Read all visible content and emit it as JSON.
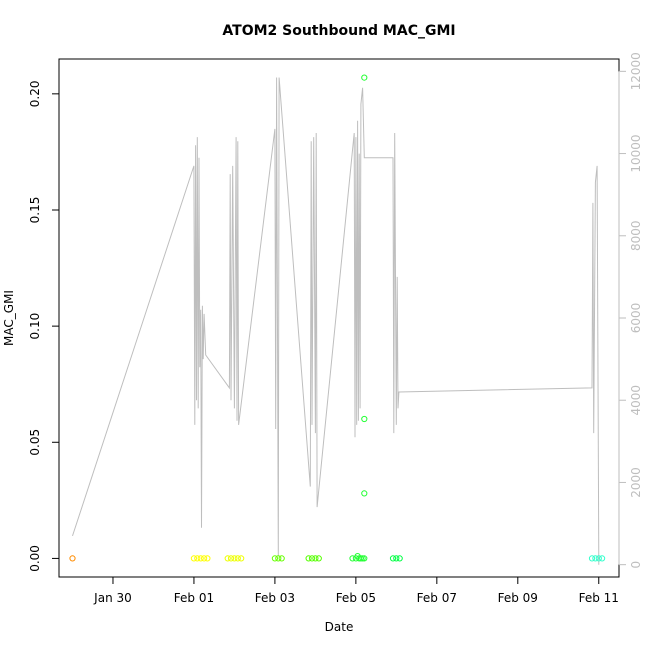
{
  "chart_data": {
    "type": "scatter",
    "title": "ATOM2 Southbound MAC_GMI",
    "xlabel": "Date",
    "ylabel": "MAC_GMI",
    "x_axis": {
      "type": "date",
      "range": [
        "2016-01-28T16:00",
        "2016-02-11T12:00"
      ],
      "ticks": [
        {
          "value": "2016-01-30",
          "label": "Jan 30"
        },
        {
          "value": "2016-02-01",
          "label": "Feb 01"
        },
        {
          "value": "2016-02-03",
          "label": "Feb 03"
        },
        {
          "value": "2016-02-05",
          "label": "Feb 05"
        },
        {
          "value": "2016-02-07",
          "label": "Feb 07"
        },
        {
          "value": "2016-02-09",
          "label": "Feb 09"
        },
        {
          "value": "2016-02-11",
          "label": "Feb 11"
        }
      ]
    },
    "y_axis": {
      "range": [
        -0.008,
        0.215
      ],
      "ticks": [
        {
          "value": 0.0,
          "label": "0.00"
        },
        {
          "value": 0.05,
          "label": "0.05"
        },
        {
          "value": 0.1,
          "label": "0.10"
        },
        {
          "value": 0.15,
          "label": "0.15"
        },
        {
          "value": 0.2,
          "label": "0.20"
        }
      ]
    },
    "y2_axis": {
      "range": [
        -300,
        12300
      ],
      "color": "#bebebe",
      "ticks": [
        {
          "value": 0,
          "label": "0"
        },
        {
          "value": 2000,
          "label": "2000"
        },
        {
          "value": 4000,
          "label": "4000"
        },
        {
          "value": 6000,
          "label": "6000"
        },
        {
          "value": 8000,
          "label": "8000"
        },
        {
          "value": 10000,
          "label": "10000"
        },
        {
          "value": 12000,
          "label": "12000"
        }
      ]
    },
    "grid": false,
    "series": [
      {
        "kind": "points",
        "axis": "left",
        "points": [
          {
            "x": "2016-01-29T00:00",
            "y": 0.0,
            "color": "#ff8c00"
          },
          {
            "x": "2016-02-01T00:00",
            "y": 0.0,
            "color": "#ffff00"
          },
          {
            "x": "2016-02-01T02:00",
            "y": 0.0,
            "color": "#ffff00"
          },
          {
            "x": "2016-02-01T04:00",
            "y": 0.0,
            "color": "#ffff00"
          },
          {
            "x": "2016-02-01T06:00",
            "y": 0.0,
            "color": "#ffff00"
          },
          {
            "x": "2016-02-01T08:00",
            "y": 0.0,
            "color": "#ffff00"
          },
          {
            "x": "2016-02-01T20:00",
            "y": 0.0,
            "color": "#eeff00"
          },
          {
            "x": "2016-02-01T22:00",
            "y": 0.0,
            "color": "#eeff00"
          },
          {
            "x": "2016-02-02T00:00",
            "y": 0.0,
            "color": "#eeff00"
          },
          {
            "x": "2016-02-02T02:00",
            "y": 0.0,
            "color": "#eeff00"
          },
          {
            "x": "2016-02-02T04:00",
            "y": 0.0,
            "color": "#eeff00"
          },
          {
            "x": "2016-02-03T00:00",
            "y": 0.0,
            "color": "#66ff00"
          },
          {
            "x": "2016-02-03T02:00",
            "y": 0.0,
            "color": "#66ff00"
          },
          {
            "x": "2016-02-03T04:00",
            "y": 0.0,
            "color": "#66ff00"
          },
          {
            "x": "2016-02-03T20:00",
            "y": 0.0,
            "color": "#55ff00"
          },
          {
            "x": "2016-02-03T22:00",
            "y": 0.0,
            "color": "#55ff00"
          },
          {
            "x": "2016-02-04T00:00",
            "y": 0.0,
            "color": "#55ff00"
          },
          {
            "x": "2016-02-04T02:00",
            "y": 0.0,
            "color": "#55ff00"
          },
          {
            "x": "2016-02-04T22:00",
            "y": 0.0,
            "color": "#22ff33"
          },
          {
            "x": "2016-02-05T00:00",
            "y": 0.0,
            "color": "#22ff33"
          },
          {
            "x": "2016-02-05T02:00",
            "y": 0.0,
            "color": "#22ff33"
          },
          {
            "x": "2016-02-05T03:00",
            "y": 0.0,
            "color": "#22ff33"
          },
          {
            "x": "2016-02-05T04:00",
            "y": 0.0,
            "color": "#22ff33"
          },
          {
            "x": "2016-02-05T05:00",
            "y": 0.0,
            "color": "#22ff33"
          },
          {
            "x": "2016-02-05T01:00",
            "y": 0.001,
            "color": "#22ff33"
          },
          {
            "x": "2016-02-05T05:00",
            "y": 0.207,
            "color": "#22ff33"
          },
          {
            "x": "2016-02-05T05:00",
            "y": 0.06,
            "color": "#22ff33"
          },
          {
            "x": "2016-02-05T05:00",
            "y": 0.028,
            "color": "#22ff33"
          },
          {
            "x": "2016-02-05T22:00",
            "y": 0.0,
            "color": "#00ff44"
          },
          {
            "x": "2016-02-06T00:00",
            "y": 0.0,
            "color": "#00ff44"
          },
          {
            "x": "2016-02-06T02:00",
            "y": 0.0,
            "color": "#00ff44"
          },
          {
            "x": "2016-02-10T20:00",
            "y": 0.0,
            "color": "#33ffcc"
          },
          {
            "x": "2016-02-10T22:00",
            "y": 0.0,
            "color": "#33ffcc"
          },
          {
            "x": "2016-02-11T00:00",
            "y": 0.0,
            "color": "#33ffcc"
          },
          {
            "x": "2016-02-11T02:00",
            "y": 0.0,
            "color": "#33ffcc"
          }
        ]
      },
      {
        "kind": "line",
        "axis": "right",
        "color": "#bebebe",
        "points": [
          [
            "2016-01-29T00:00",
            700
          ],
          [
            "2016-02-01T00:00",
            9700
          ],
          [
            "2016-02-01T00:30",
            3400
          ],
          [
            "2016-02-01T01:00",
            10200
          ],
          [
            "2016-02-01T01:30",
            4000
          ],
          [
            "2016-02-01T02:00",
            10400
          ],
          [
            "2016-02-01T02:30",
            3800
          ],
          [
            "2016-02-01T03:00",
            9900
          ],
          [
            "2016-02-01T03:30",
            4800
          ],
          [
            "2016-02-01T04:00",
            6200
          ],
          [
            "2016-02-01T04:30",
            900
          ],
          [
            "2016-02-01T05:00",
            6300
          ],
          [
            "2016-02-01T05:30",
            5000
          ],
          [
            "2016-02-01T06:00",
            6100
          ],
          [
            "2016-02-01T07:00",
            5100
          ],
          [
            "2016-02-01T21:00",
            4300
          ],
          [
            "2016-02-01T21:30",
            9500
          ],
          [
            "2016-02-01T22:00",
            4000
          ],
          [
            "2016-02-01T23:00",
            9700
          ],
          [
            "2016-02-02T00:00",
            3800
          ],
          [
            "2016-02-02T01:00",
            10400
          ],
          [
            "2016-02-02T01:30",
            3500
          ],
          [
            "2016-02-02T02:00",
            10300
          ],
          [
            "2016-02-02T02:30",
            3400
          ],
          [
            "2016-02-03T00:00",
            10600
          ],
          [
            "2016-02-03T00:30",
            3300
          ],
          [
            "2016-02-03T01:00",
            11850
          ],
          [
            "2016-02-03T02:00",
            200
          ],
          [
            "2016-02-03T02:30",
            11850
          ],
          [
            "2016-02-03T21:00",
            1900
          ],
          [
            "2016-02-03T21:30",
            10300
          ],
          [
            "2016-02-03T22:00",
            3400
          ],
          [
            "2016-02-03T23:00",
            10400
          ],
          [
            "2016-02-04T00:00",
            3200
          ],
          [
            "2016-02-04T00:30",
            10500
          ],
          [
            "2016-02-04T01:00",
            1400
          ],
          [
            "2016-02-04T23:00",
            10500
          ],
          [
            "2016-02-04T23:30",
            3100
          ],
          [
            "2016-02-05T00:00",
            10400
          ],
          [
            "2016-02-05T00:30",
            3400
          ],
          [
            "2016-02-05T01:00",
            10800
          ],
          [
            "2016-02-05T01:30",
            3500
          ],
          [
            "2016-02-05T02:00",
            10000
          ],
          [
            "2016-02-05T02:30",
            3800
          ],
          [
            "2016-02-05T03:00",
            11200
          ],
          [
            "2016-02-05T04:00",
            11600
          ],
          [
            "2016-02-05T05:00",
            9900
          ],
          [
            "2016-02-05T22:00",
            9900
          ],
          [
            "2016-02-05T22:30",
            3200
          ],
          [
            "2016-02-05T23:00",
            10500
          ],
          [
            "2016-02-06T00:00",
            3400
          ],
          [
            "2016-02-06T00:30",
            7000
          ],
          [
            "2016-02-06T01:00",
            3800
          ],
          [
            "2016-02-06T01:30",
            4200
          ],
          [
            "2016-02-10T20:00",
            4300
          ],
          [
            "2016-02-10T20:30",
            8800
          ],
          [
            "2016-02-10T21:00",
            3200
          ],
          [
            "2016-02-10T22:00",
            9300
          ],
          [
            "2016-02-10T23:00",
            9700
          ],
          [
            "2016-02-11T00:00",
            0
          ]
        ]
      }
    ]
  }
}
